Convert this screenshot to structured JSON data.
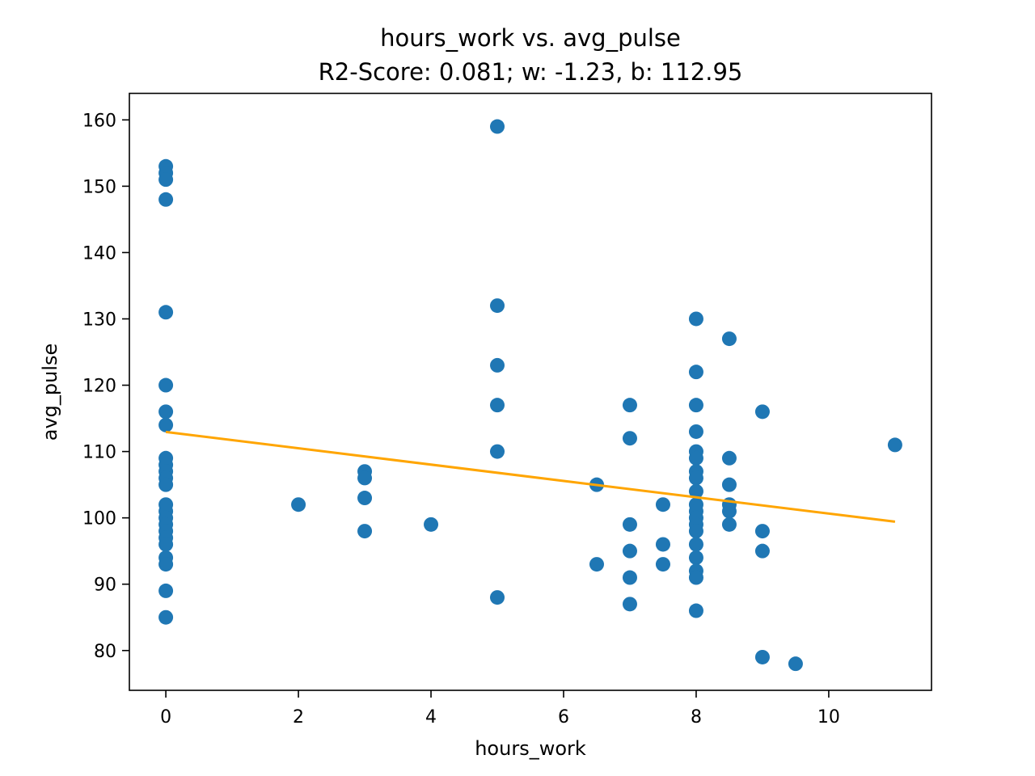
{
  "chart_data": {
    "type": "scatter",
    "title": "hours_work vs. avg_pulse",
    "subtitle": "R2-Score: 0.081; w: -1.23, b: 112.95",
    "xlabel": "hours_work",
    "ylabel": "avg_pulse",
    "xlim": [
      -0.55,
      11.55
    ],
    "ylim": [
      74,
      164
    ],
    "xticks": [
      0,
      2,
      4,
      6,
      8,
      10
    ],
    "yticks": [
      80,
      90,
      100,
      110,
      120,
      130,
      140,
      150,
      160
    ],
    "grid": false,
    "point_color": "#1f77b4",
    "line_color": "#ffa500",
    "points": [
      [
        0,
        153
      ],
      [
        0,
        152
      ],
      [
        0,
        151
      ],
      [
        0,
        148
      ],
      [
        0,
        131
      ],
      [
        0,
        120
      ],
      [
        0,
        116
      ],
      [
        0,
        114
      ],
      [
        0,
        109
      ],
      [
        0,
        108
      ],
      [
        0,
        107
      ],
      [
        0,
        106
      ],
      [
        0,
        105
      ],
      [
        0,
        102
      ],
      [
        0,
        101
      ],
      [
        0,
        100
      ],
      [
        0,
        99
      ],
      [
        0,
        98
      ],
      [
        0,
        97
      ],
      [
        0,
        96
      ],
      [
        0,
        94
      ],
      [
        0,
        93
      ],
      [
        0,
        89
      ],
      [
        0,
        85
      ],
      [
        2,
        102
      ],
      [
        3,
        107
      ],
      [
        3,
        106
      ],
      [
        3,
        103
      ],
      [
        3,
        98
      ],
      [
        4,
        99
      ],
      [
        5,
        159
      ],
      [
        5,
        132
      ],
      [
        5,
        123
      ],
      [
        5,
        117
      ],
      [
        5,
        110
      ],
      [
        5,
        88
      ],
      [
        6.5,
        105
      ],
      [
        6.5,
        93
      ],
      [
        7,
        117
      ],
      [
        7,
        112
      ],
      [
        7,
        99
      ],
      [
        7,
        95
      ],
      [
        7,
        91
      ],
      [
        7,
        87
      ],
      [
        7.5,
        102
      ],
      [
        7.5,
        96
      ],
      [
        7.5,
        93
      ],
      [
        8,
        130
      ],
      [
        8,
        122
      ],
      [
        8,
        117
      ],
      [
        8,
        113
      ],
      [
        8,
        110
      ],
      [
        8,
        109
      ],
      [
        8,
        107
      ],
      [
        8,
        106
      ],
      [
        8,
        104
      ],
      [
        8,
        102
      ],
      [
        8,
        101
      ],
      [
        8,
        100
      ],
      [
        8,
        99
      ],
      [
        8,
        98
      ],
      [
        8,
        96
      ],
      [
        8,
        94
      ],
      [
        8,
        92
      ],
      [
        8,
        91
      ],
      [
        8,
        86
      ],
      [
        8.5,
        127
      ],
      [
        8.5,
        109
      ],
      [
        8.5,
        105
      ],
      [
        8.5,
        102
      ],
      [
        8.5,
        101
      ],
      [
        8.5,
        99
      ],
      [
        9,
        116
      ],
      [
        9,
        98
      ],
      [
        9,
        95
      ],
      [
        9,
        79
      ],
      [
        9.5,
        78
      ],
      [
        11,
        111
      ]
    ],
    "fit_line": {
      "w": -1.23,
      "b": 112.95,
      "x_range": [
        0,
        11
      ]
    }
  }
}
